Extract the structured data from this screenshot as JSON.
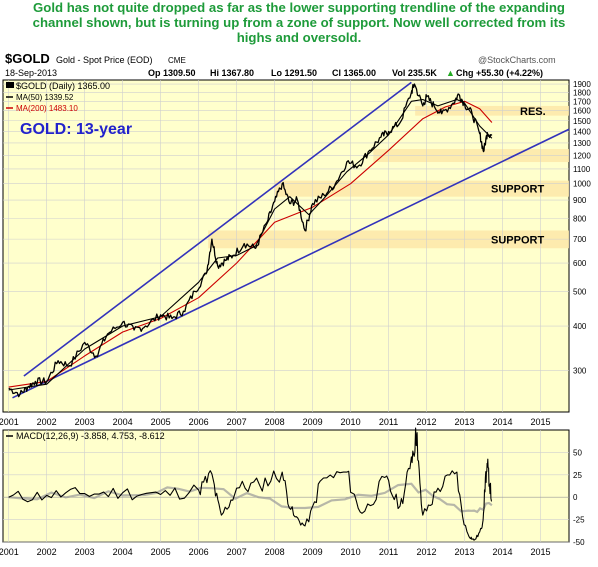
{
  "headline": {
    "line1": "Gold has not quite dropped as far as the lower supporting trendline of the expanding",
    "line2": "channel shown, but is turning up from a zone of support. Now well corrected from its",
    "line3": "highs and oversold."
  },
  "header": {
    "symbol": "$GOLD",
    "description": "Gold - Spot Price (EOD)",
    "exchange": "CME",
    "watermark": "@StockCharts.com",
    "date": "18-Sep-2013",
    "open": "Op 1309.50",
    "high": "Hi 1367.80",
    "low": "Lo 1291.50",
    "close": "Cl 1365.00",
    "volume": "Vol 235.5K",
    "change": "Chg +55.30 (+4.22%)",
    "change_arrow": "▲"
  },
  "legend": {
    "price": "$GOLD (Daily) 1365.00",
    "ma50": "MA(50) 1339.52",
    "ma200": "MA(200) 1483.10"
  },
  "colors": {
    "panel_bg": "#ffffcc",
    "price": "#000000",
    "ma50": "#000000",
    "ma200": "#cc0000",
    "trendline": "#3333bb",
    "support_band": "#fde7a8",
    "title_blue": "#2222cc",
    "headline_green": "#1e9b3a",
    "macd": "#000000",
    "histogram": "#999999"
  },
  "chart_data": [
    {
      "type": "line",
      "title": "GOLD: 13-year",
      "y_scale": "log",
      "ylim": [
        230,
        1950
      ],
      "xlim": [
        2000.85,
        2015.75
      ],
      "x_tick_labels": [
        "2001",
        "2002",
        "2003",
        "2004",
        "2005",
        "2006",
        "2007",
        "2008",
        "2009",
        "2010",
        "2011",
        "2012",
        "2013",
        "2014",
        "2015"
      ],
      "y_ticks": [
        300,
        400,
        500,
        600,
        700,
        800,
        900,
        1000,
        1100,
        1200,
        1300,
        1400,
        1500,
        1600,
        1700,
        1800,
        1900
      ],
      "series": [
        {
          "name": "$GOLD (Daily)",
          "x": [
            2001.0,
            2001.3,
            2001.5,
            2001.7,
            2002.0,
            2002.3,
            2002.6,
            2003.0,
            2003.3,
            2003.6,
            2004.0,
            2004.3,
            2004.6,
            2005.0,
            2005.3,
            2005.6,
            2005.9,
            2006.2,
            2006.35,
            2006.5,
            2006.7,
            2006.9,
            2007.2,
            2007.5,
            2007.8,
            2008.0,
            2008.2,
            2008.4,
            2008.6,
            2008.8,
            2009.0,
            2009.3,
            2009.6,
            2009.9,
            2010.2,
            2010.5,
            2010.8,
            2011.0,
            2011.3,
            2011.6,
            2011.68,
            2011.9,
            2012.0,
            2012.2,
            2012.4,
            2012.7,
            2012.85,
            2013.0,
            2013.2,
            2013.4,
            2013.5,
            2013.6,
            2013.72
          ],
          "values": [
            268,
            258,
            270,
            280,
            280,
            320,
            310,
            360,
            330,
            380,
            410,
            390,
            400,
            430,
            420,
            440,
            500,
            560,
            700,
            590,
            610,
            630,
            680,
            660,
            780,
            890,
            1000,
            880,
            900,
            740,
            880,
            930,
            1000,
            1150,
            1120,
            1240,
            1350,
            1400,
            1480,
            1800,
            1900,
            1650,
            1750,
            1650,
            1570,
            1680,
            1780,
            1670,
            1570,
            1380,
            1230,
            1390,
            1365
          ]
        },
        {
          "name": "MA(50)",
          "x": [
            2001.0,
            2002.0,
            2003.0,
            2004.0,
            2005.0,
            2006.0,
            2006.5,
            2007.0,
            2007.5,
            2008.0,
            2008.4,
            2008.9,
            2009.3,
            2009.9,
            2010.5,
            2011.0,
            2011.6,
            2011.9,
            2012.3,
            2012.8,
            2013.0,
            2013.4,
            2013.72
          ],
          "values": [
            265,
            275,
            345,
            400,
            425,
            530,
            620,
            630,
            670,
            850,
            920,
            820,
            910,
            1080,
            1220,
            1370,
            1700,
            1720,
            1650,
            1720,
            1680,
            1450,
            1340
          ]
        },
        {
          "name": "MA(200)",
          "x": [
            2001.0,
            2002.0,
            2003.0,
            2004.0,
            2005.0,
            2006.0,
            2007.0,
            2008.0,
            2009.0,
            2010.0,
            2011.0,
            2011.9,
            2012.5,
            2013.0,
            2013.4,
            2013.72
          ],
          "values": [
            270,
            280,
            330,
            385,
            420,
            480,
            600,
            780,
            860,
            1000,
            1240,
            1520,
            1640,
            1700,
            1620,
            1483
          ]
        }
      ],
      "annotations": [
        {
          "text": "RES.",
          "y_low": 1550,
          "y_high": 1650
        },
        {
          "text": "SUPPORT",
          "y_low": 920,
          "y_high": 1020
        },
        {
          "text": "SUPPORT",
          "y_low": 660,
          "y_high": 740
        }
      ],
      "bands": [
        {
          "x_from": 2011.7,
          "y_low": 1550,
          "y_high": 1650
        },
        {
          "x_from": 2010.6,
          "y_low": 1150,
          "y_high": 1250
        },
        {
          "x_from": 2008.0,
          "y_low": 920,
          "y_high": 1020
        },
        {
          "x_from": 2006.25,
          "y_low": 660,
          "y_high": 740
        }
      ],
      "trendlines": [
        {
          "x": [
            2001.4,
            2011.6
          ],
          "values": [
            290,
            1920
          ]
        },
        {
          "x": [
            2001.1,
            2015.75
          ],
          "values": [
            252,
            1420
          ]
        }
      ]
    },
    {
      "type": "line",
      "title": "MACD(12,26,9) -3.858, 4.753, -8.612",
      "ylim": [
        -50,
        75
      ],
      "x_tick_labels": [
        "2001",
        "2002",
        "2003",
        "2004",
        "2005",
        "2006",
        "2007",
        "2008",
        "2009",
        "2010",
        "2011",
        "2012",
        "2013",
        "2014",
        "2015"
      ],
      "y_ticks": [
        -50,
        -25,
        0,
        25,
        50
      ],
      "series": [
        {
          "name": "MACD(12,26,9)",
          "x": [
            2001.0,
            2002.0,
            2003.0,
            2004.0,
            2005.0,
            2006.0,
            2006.35,
            2006.6,
            2007.0,
            2007.6,
            2008.2,
            2008.5,
            2008.8,
            2009.2,
            2009.9,
            2010.3,
            2010.9,
            2011.3,
            2011.6,
            2011.75,
            2011.9,
            2012.3,
            2012.8,
            2013.1,
            2013.25,
            2013.45,
            2013.55,
            2013.62,
            2013.72
          ],
          "values": [
            0,
            2,
            4,
            5,
            3,
            8,
            26,
            -20,
            10,
            14,
            28,
            -20,
            -32,
            18,
            28,
            -18,
            22,
            -10,
            45,
            72,
            -20,
            10,
            28,
            -42,
            -48,
            -35,
            22,
            33,
            -4
          ]
        },
        {
          "name": "Histogram",
          "x": [
            2001.0,
            2004.0,
            2006.35,
            2008.8,
            2011.6,
            2013.1,
            2013.72
          ],
          "values": [
            0,
            2,
            10,
            -12,
            15,
            -15,
            -9
          ]
        }
      ]
    }
  ]
}
